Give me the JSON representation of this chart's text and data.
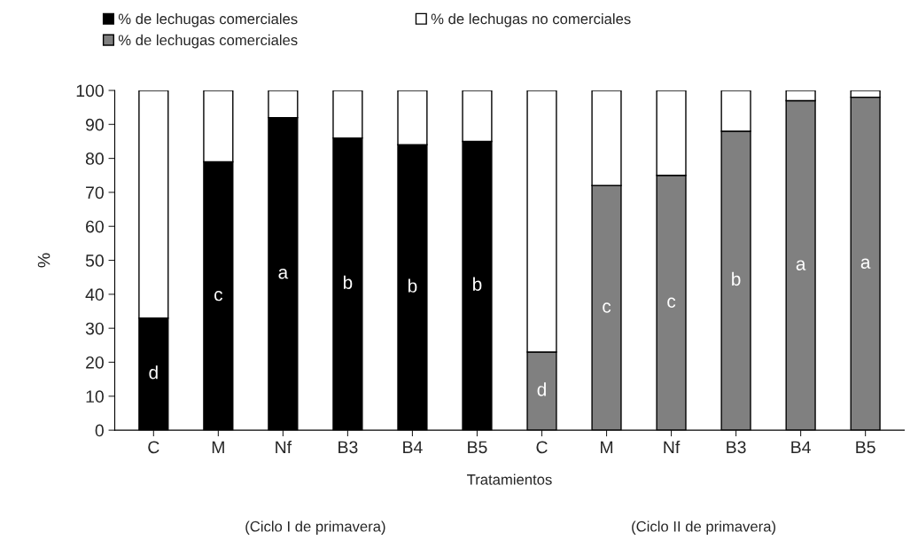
{
  "chart_data": {
    "type": "bar",
    "stacked": true,
    "xlabel": "Tratamientos",
    "ylabel": "%",
    "categories": [
      "C",
      "M",
      "Nf",
      "B3",
      "B4",
      "B5",
      "C",
      "M",
      "Nf",
      "B3",
      "B4",
      "B5"
    ],
    "series": [
      {
        "name": "% de lechugas comerciales",
        "color": "#000000",
        "values": [
          33,
          79,
          92,
          86,
          84,
          85,
          null,
          null,
          null,
          null,
          null,
          null
        ],
        "value_labels": [
          "d",
          "c",
          "a",
          "b",
          "b",
          "b",
          null,
          null,
          null,
          null,
          null,
          null
        ]
      },
      {
        "name": "% de lechugas comerciales",
        "color": "#808080",
        "values": [
          null,
          null,
          null,
          null,
          null,
          null,
          23,
          72,
          75,
          88,
          97,
          98
        ],
        "value_labels": [
          null,
          null,
          null,
          null,
          null,
          null,
          "d",
          "c",
          "c",
          "b",
          "a",
          "a"
        ]
      },
      {
        "name": "% de lechugas no comerciales",
        "color": "#ffffff",
        "values": [
          67,
          21,
          8,
          14,
          16,
          15,
          77,
          28,
          25,
          12,
          3,
          2
        ]
      }
    ],
    "ylim": [
      0,
      100
    ],
    "yticks": [
      0,
      10,
      20,
      30,
      40,
      50,
      60,
      70,
      80,
      90,
      100
    ],
    "grid": false,
    "legend": "top",
    "annotations": [
      "(Ciclo I de primavera)",
      "(Ciclo II de primavera)"
    ]
  }
}
